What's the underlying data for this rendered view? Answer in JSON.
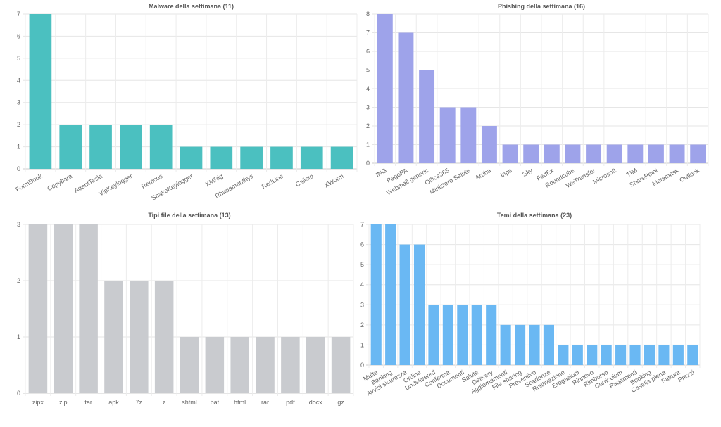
{
  "chart_data": [
    {
      "type": "bar",
      "title": "Malware della settimana (11)",
      "categories": [
        "FormBook",
        "Copybara",
        "AgentTesla",
        "VipKeylogger",
        "Remcos",
        "SnakeKeylogger",
        "XMRig",
        "Rhadamanthys",
        "RedLine",
        "Calisto",
        "XWorm"
      ],
      "values": [
        7,
        2,
        2,
        2,
        2,
        1,
        1,
        1,
        1,
        1,
        1
      ],
      "ylim": [
        0,
        7
      ],
      "yticks": [
        "0",
        "1",
        "2",
        "3",
        "4",
        "5",
        "6",
        "7"
      ],
      "color": "#4bc0c0",
      "grid": true,
      "xlabel": "",
      "ylabel": ""
    },
    {
      "type": "bar",
      "title": "Phishing della settimana (16)",
      "categories": [
        "ING",
        "PagoPA",
        "Webmail generic",
        "Office365",
        "Ministero Salute",
        "Aruba",
        "Inps",
        "Sky",
        "FedEx",
        "Roundcube",
        "WeTransfer",
        "Microsoft",
        "TIM",
        "SharePoint",
        "Metamask",
        "Outlook"
      ],
      "values": [
        8,
        7,
        5,
        3,
        3,
        2,
        1,
        1,
        1,
        1,
        1,
        1,
        1,
        1,
        1,
        1
      ],
      "ylim": [
        0,
        8
      ],
      "yticks": [
        "0",
        "1",
        "2",
        "3",
        "4",
        "5",
        "6",
        "7",
        "8"
      ],
      "color": "#9ea3ea",
      "grid": true,
      "xlabel": "",
      "ylabel": ""
    },
    {
      "type": "bar",
      "title": "Tipi file della settimana (13)",
      "categories": [
        "zipx",
        "zip",
        "tar",
        "apk",
        "7z",
        "z",
        "shtml",
        "bat",
        "html",
        "rar",
        "pdf",
        "docx",
        "gz"
      ],
      "values": [
        3,
        3,
        3,
        2,
        2,
        2,
        1,
        1,
        1,
        1,
        1,
        1,
        1
      ],
      "ylim": [
        0,
        3
      ],
      "yticks": [
        "0",
        "1",
        "2",
        "3"
      ],
      "color": "#c9cbcf",
      "grid": true,
      "xlabel": "",
      "ylabel": ""
    },
    {
      "type": "bar",
      "title": "Temi della settimana (23)",
      "categories": [
        "Multe",
        "Banking",
        "Avvisi sicurezza",
        "Ordine",
        "Undelivered",
        "Conferma",
        "Documenti",
        "Salute",
        "Delivery",
        "Aggiornamenti",
        "File sharing",
        "Preventivo",
        "Scadenze",
        "Riattivazione",
        "Erogazioni",
        "Rinnovo",
        "Rimborso",
        "Curriculum",
        "Pagamenti",
        "Booking",
        "Casella piena",
        "Fattura",
        "Prezzi"
      ],
      "values": [
        7,
        7,
        6,
        6,
        3,
        3,
        3,
        3,
        3,
        2,
        2,
        2,
        2,
        1,
        1,
        1,
        1,
        1,
        1,
        1,
        1,
        1,
        1
      ],
      "ylim": [
        0,
        7
      ],
      "yticks": [
        "0",
        "1",
        "2",
        "3",
        "4",
        "5",
        "6",
        "7"
      ],
      "color": "#6ab8f3",
      "grid": true,
      "xlabel": "",
      "ylabel": ""
    }
  ]
}
